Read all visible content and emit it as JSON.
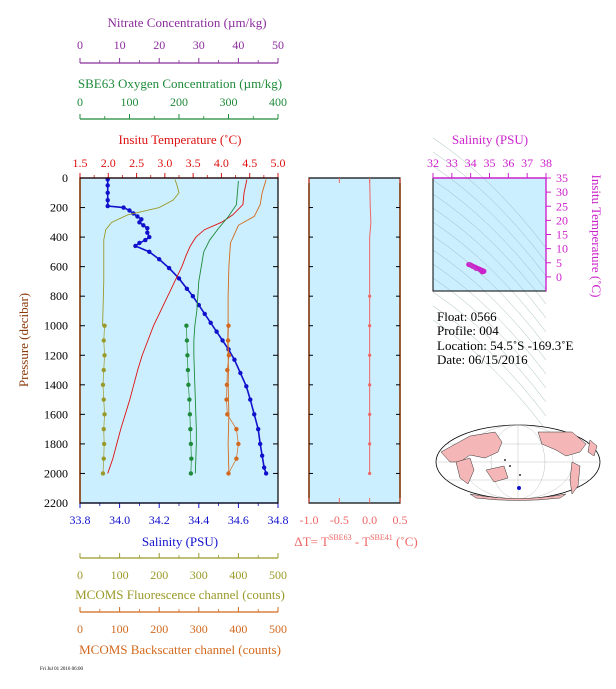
{
  "colors": {
    "nitrate": "#8b2d9c",
    "oxygen": "#1f8a3a",
    "temperature": "#dd1111",
    "salinity": "#1111cc",
    "fluorescence": "#9a9a2a",
    "backscatter": "#d2691e",
    "delta_t": "#ee6666",
    "ts_salinity": "#cc22cc",
    "panel_bg": "#ccefff"
  },
  "axes": {
    "nitrate": {
      "label": "Nitrate Concentration (µm/kg)",
      "range": [
        0,
        50
      ],
      "ticks": [
        "0",
        "10",
        "20",
        "30",
        "40",
        "50"
      ]
    },
    "oxygen": {
      "label": "SBE63 Oxygen Concentration (µm/kg)",
      "range": [
        0,
        400
      ],
      "ticks": [
        "0",
        "100",
        "200",
        "300",
        "400"
      ]
    },
    "temperature": {
      "label": "Insitu Temperature (˚C)",
      "range": [
        1.5,
        5.0
      ],
      "ticks": [
        "1.5",
        "2.0",
        "2.5",
        "3.0",
        "3.5",
        "4.0",
        "4.5",
        "5.0"
      ]
    },
    "pressure": {
      "label": "Pressure (decibar)",
      "range": [
        0,
        2200
      ],
      "ticks": [
        "0",
        "200",
        "400",
        "600",
        "800",
        "1000",
        "1200",
        "1400",
        "1600",
        "1800",
        "2000",
        "2200"
      ]
    },
    "salinity": {
      "label": "Salinity (PSU)",
      "range": [
        33.8,
        34.8
      ],
      "ticks": [
        "33.8",
        "34.0",
        "34.2",
        "34.4",
        "34.6",
        "34.8"
      ]
    },
    "fluorescence": {
      "label": "MCOMS Fluorescence channel (counts)",
      "range": [
        0,
        500
      ],
      "ticks": [
        "0",
        "100",
        "200",
        "300",
        "400",
        "500"
      ]
    },
    "backscatter": {
      "label": "MCOMS Backscatter channel (counts)",
      "range": [
        0,
        500
      ],
      "ticks": [
        "0",
        "100",
        "200",
        "300",
        "400",
        "500"
      ]
    },
    "delta_t": {
      "label_prefix": "ΔT= T",
      "sup1": "SBE63",
      "label_mid": " - T",
      "sup2": "SBE41",
      "label_suffix": " (˚C)",
      "range": [
        -1.0,
        0.5
      ],
      "ticks": [
        "-1.0",
        "-0.5",
        "0.0",
        "0.5"
      ]
    },
    "ts_salinity": {
      "label": "Salinity (PSU)",
      "range": [
        32,
        38
      ],
      "ticks": [
        "32",
        "33",
        "34",
        "35",
        "36",
        "37",
        "38"
      ]
    },
    "ts_temperature": {
      "label": "Insitu Temperature (˚C)",
      "range": [
        -5,
        35
      ],
      "ticks": [
        "0",
        "5",
        "10",
        "15",
        "20",
        "25",
        "30",
        "35"
      ]
    }
  },
  "info": {
    "float": "Float:  0566",
    "profile": "Profile:  004",
    "location": "Location:  54.5˚S  -169.3˚E",
    "date": "Date:  06/15/2016"
  },
  "footer": "Fri Jul 01 2016 06:00",
  "chart_data": [
    {
      "type": "line",
      "title": "Main profile",
      "y_axis": "pressure",
      "series": [
        {
          "name": "Salinity",
          "axis": "salinity",
          "points": [
            [
              33.94,
              10
            ],
            [
              33.94,
              50
            ],
            [
              33.94,
              100
            ],
            [
              33.94,
              150
            ],
            [
              33.94,
              190
            ],
            [
              34.02,
              200
            ],
            [
              34.05,
              220
            ],
            [
              34.07,
              240
            ],
            [
              34.09,
              260
            ],
            [
              34.11,
              280
            ],
            [
              34.1,
              300
            ],
            [
              34.12,
              320
            ],
            [
              34.14,
              340
            ],
            [
              34.14,
              370
            ],
            [
              34.15,
              400
            ],
            [
              34.13,
              420
            ],
            [
              34.1,
              440
            ],
            [
              34.08,
              460
            ],
            [
              34.15,
              500
            ],
            [
              34.2,
              550
            ],
            [
              34.25,
              610
            ],
            [
              34.3,
              680
            ],
            [
              34.34,
              750
            ],
            [
              34.37,
              800
            ],
            [
              34.4,
              860
            ],
            [
              34.43,
              920
            ],
            [
              34.46,
              980
            ],
            [
              34.49,
              1040
            ],
            [
              34.52,
              1100
            ],
            [
              34.55,
              1160
            ],
            [
              34.58,
              1230
            ],
            [
              34.61,
              1320
            ],
            [
              34.64,
              1410
            ],
            [
              34.66,
              1500
            ],
            [
              34.68,
              1600
            ],
            [
              34.7,
              1700
            ],
            [
              34.71,
              1800
            ],
            [
              34.72,
              1880
            ],
            [
              34.73,
              1960
            ],
            [
              34.74,
              2000
            ]
          ]
        },
        {
          "name": "Temperature",
          "axis": "temperature",
          "points": [
            [
              4.45,
              10
            ],
            [
              4.4,
              100
            ],
            [
              4.38,
              180
            ],
            [
              4.2,
              250
            ],
            [
              4.0,
              300
            ],
            [
              3.7,
              350
            ],
            [
              3.55,
              400
            ],
            [
              3.45,
              460
            ],
            [
              3.38,
              520
            ],
            [
              3.3,
              600
            ],
            [
              3.2,
              680
            ],
            [
              3.1,
              760
            ],
            [
              3.0,
              840
            ],
            [
              2.9,
              920
            ],
            [
              2.8,
              1000
            ],
            [
              2.7,
              1100
            ],
            [
              2.6,
              1200
            ],
            [
              2.52,
              1300
            ],
            [
              2.45,
              1400
            ],
            [
              2.38,
              1500
            ],
            [
              2.3,
              1600
            ],
            [
              2.22,
              1700
            ],
            [
              2.15,
              1800
            ],
            [
              2.08,
              1900
            ],
            [
              1.99,
              2000
            ]
          ]
        },
        {
          "name": "Oxygen",
          "axis": "oxygen",
          "points": [
            [
              320,
              20
            ],
            [
              318,
              100
            ],
            [
              316,
              180
            ],
            [
              300,
              260
            ],
            [
              280,
              340
            ],
            [
              262,
              420
            ],
            [
              250,
              500
            ],
            [
              245,
              600
            ],
            [
              240,
              700
            ],
            [
              238,
              800
            ],
            [
              236,
              900
            ],
            [
              232,
              1000
            ],
            [
              230,
              1100
            ],
            [
              230,
              1200
            ],
            [
              231,
              1300
            ],
            [
              232,
              1400
            ],
            [
              233,
              1500
            ],
            [
              234,
              1600
            ],
            [
              235,
              1700
            ],
            [
              235,
              1800
            ],
            [
              234,
              1900
            ],
            [
              233,
              2000
            ]
          ]
        },
        {
          "name": "Oxygen (discrete)",
          "axis": "oxygen",
          "points": [
            [
              215,
              1000
            ],
            [
              216,
              1100
            ],
            [
              217,
              1200
            ],
            [
              218,
              1300
            ],
            [
              219,
              1400
            ],
            [
              221,
              1500
            ],
            [
              222,
              1600
            ],
            [
              223,
              1700
            ],
            [
              224,
              1800
            ],
            [
              225,
              1900
            ],
            [
              224,
              2000
            ]
          ]
        },
        {
          "name": "Fluorescence",
          "axis": "fluorescence",
          "points": [
            [
              240,
              10
            ],
            [
              245,
              50
            ],
            [
              250,
              100
            ],
            [
              235,
              150
            ],
            [
              200,
              200
            ],
            [
              120,
              250
            ],
            [
              80,
              300
            ],
            [
              65,
              350
            ],
            [
              60,
              420
            ],
            [
              60,
              500
            ],
            [
              60,
              700
            ],
            [
              58,
              900
            ],
            [
              57,
              1000
            ]
          ]
        },
        {
          "name": "Fluorescence (discrete)",
          "axis": "fluorescence",
          "points": [
            [
              62,
              1000
            ],
            [
              60,
              1100
            ],
            [
              62,
              1200
            ],
            [
              60,
              1300
            ],
            [
              58,
              1400
            ],
            [
              60,
              1500
            ],
            [
              62,
              1600
            ],
            [
              60,
              1700
            ],
            [
              61,
              1800
            ],
            [
              60,
              1900
            ],
            [
              58,
              2000
            ]
          ]
        },
        {
          "name": "Backscatter",
          "axis": "backscatter",
          "points": [
            [
              470,
              10
            ],
            [
              460,
              100
            ],
            [
              455,
              180
            ],
            [
              440,
              260
            ],
            [
              400,
              320
            ],
            [
              390,
              380
            ],
            [
              380,
              440
            ],
            [
              378,
              520
            ],
            [
              376,
              600
            ],
            [
              375,
              700
            ],
            [
              374,
              800
            ],
            [
              374,
              900
            ],
            [
              374,
              1000
            ],
            [
              373,
              1100
            ],
            [
              374,
              1200
            ],
            [
              375,
              1300
            ],
            [
              374,
              1400
            ],
            [
              375,
              1500
            ],
            [
              376,
              1600
            ],
            [
              375,
              1700
            ],
            [
              374,
              1800
            ],
            [
              375,
              1900
            ],
            [
              376,
              2000
            ]
          ]
        },
        {
          "name": "Backscatter (discrete)",
          "axis": "backscatter",
          "points": [
            [
              375,
              1000
            ],
            [
              374,
              1100
            ],
            [
              376,
              1200
            ],
            [
              372,
              1300
            ],
            [
              371,
              1400
            ],
            [
              370,
              1500
            ],
            [
              372,
              1600
            ],
            [
              395,
              1700
            ],
            [
              400,
              1800
            ],
            [
              395,
              1900
            ],
            [
              375,
              2000
            ]
          ]
        }
      ]
    },
    {
      "type": "line",
      "title": "ΔT profile",
      "y_axis": "pressure",
      "series": [
        {
          "name": "ΔT",
          "axis": "delta_t",
          "points": [
            [
              0.0,
              10
            ],
            [
              0.01,
              200
            ],
            [
              0.02,
              300
            ],
            [
              0.0,
              400
            ],
            [
              0.0,
              600
            ],
            [
              0.0,
              800
            ],
            [
              0.0,
              1000
            ],
            [
              0.0,
              1200
            ],
            [
              0.0,
              1400
            ],
            [
              0.0,
              1600
            ],
            [
              0.0,
              1800
            ],
            [
              0.0,
              2000
            ]
          ]
        }
      ]
    },
    {
      "type": "scatter",
      "title": "T-S diagram",
      "x_axis": "ts_salinity",
      "y_axis": "ts_temperature",
      "series": [
        {
          "name": "T-S",
          "points": [
            [
              33.9,
              4.4
            ],
            [
              34.0,
              4.2
            ],
            [
              34.1,
              3.8
            ],
            [
              34.2,
              3.5
            ],
            [
              34.3,
              3.2
            ],
            [
              34.4,
              2.9
            ],
            [
              34.5,
              2.6
            ],
            [
              34.6,
              2.3
            ],
            [
              34.7,
              2.0
            ],
            [
              34.6,
              1.8
            ],
            [
              34.5,
              2.5
            ],
            [
              34.3,
              3.0
            ]
          ]
        }
      ]
    }
  ]
}
